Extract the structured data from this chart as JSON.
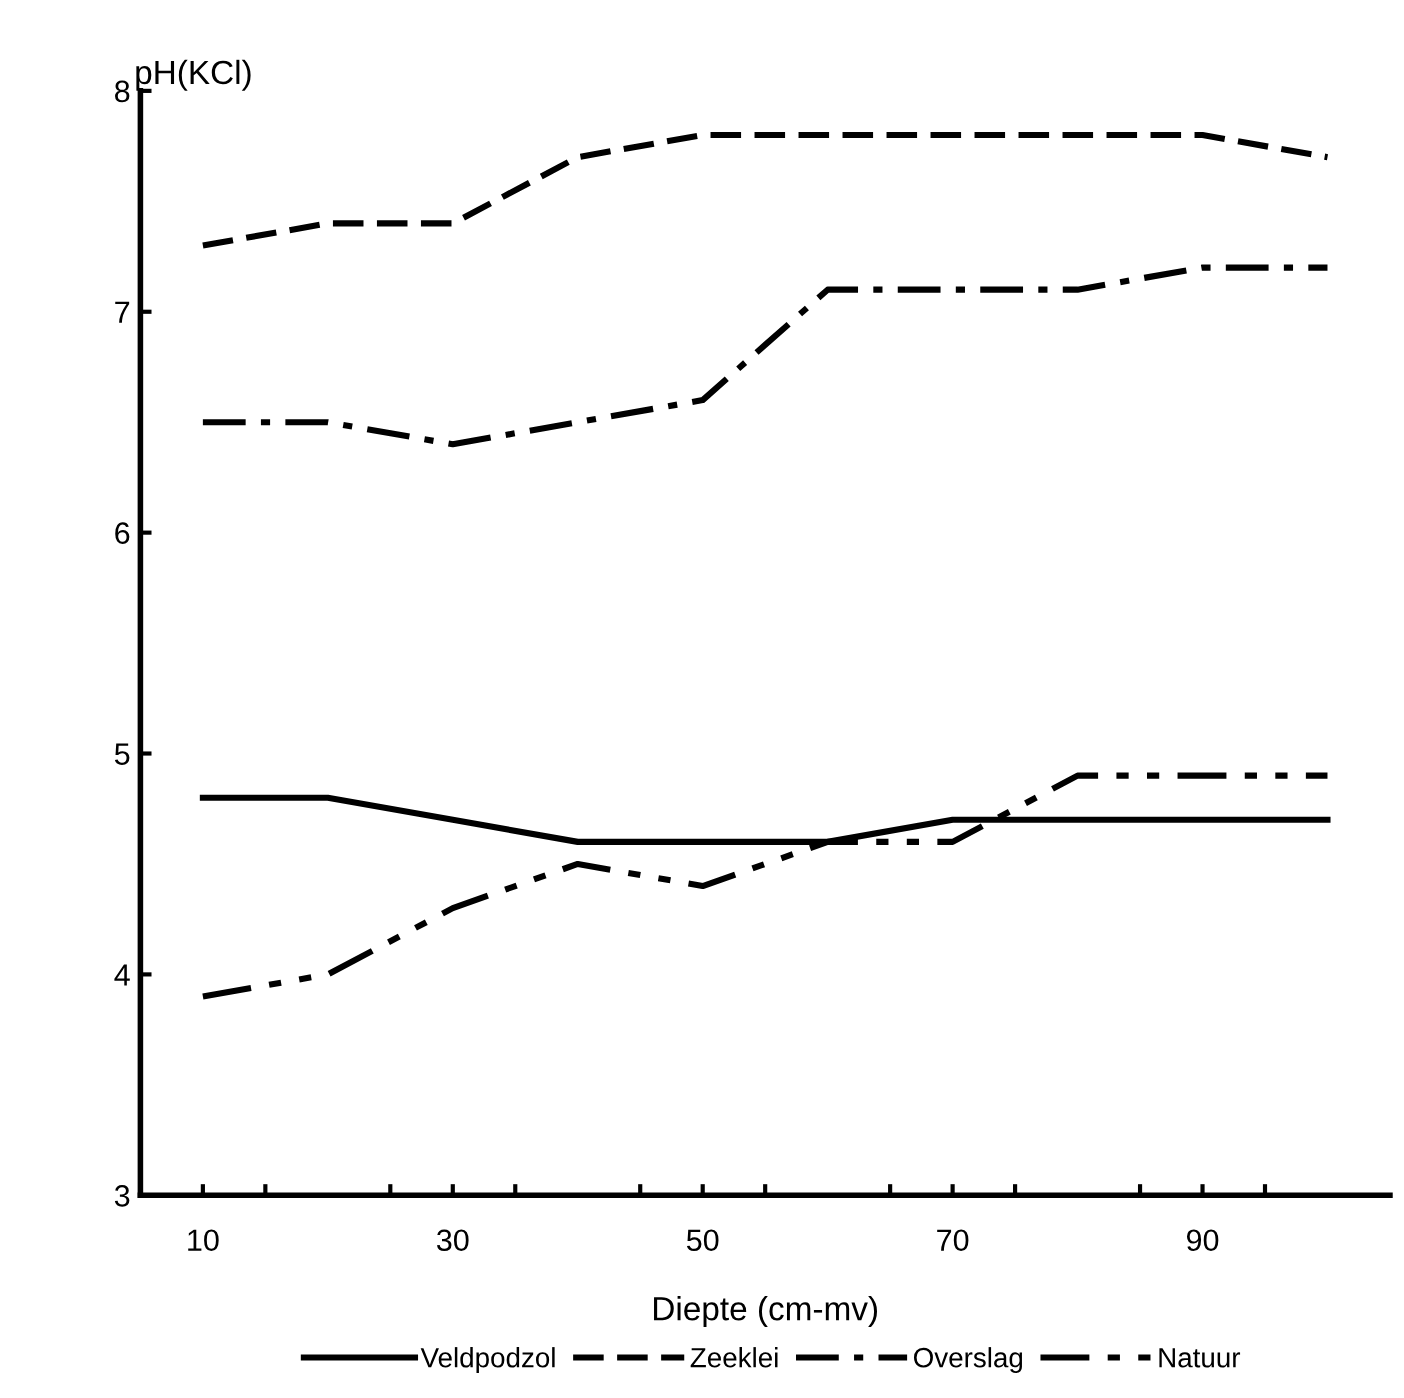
{
  "chart_data": {
    "type": "line",
    "xlabel": "Diepte (cm-mv)",
    "ylabel": "pH(KCl)",
    "x": [
      10,
      20,
      30,
      40,
      50,
      60,
      70,
      80,
      90,
      100
    ],
    "series": [
      {
        "name": "Veldpodzol",
        "color": "#000000",
        "line_style": "solid",
        "values": [
          4.8,
          4.8,
          4.7,
          4.6,
          4.6,
          4.6,
          4.7,
          4.7,
          4.7,
          4.7
        ]
      },
      {
        "name": "Zeeklei",
        "color": "#000000",
        "line_style": "dashed",
        "values": [
          7.3,
          7.4,
          7.4,
          7.7,
          7.8,
          7.8,
          7.8,
          7.8,
          7.8,
          7.7
        ]
      },
      {
        "name": "Overslag",
        "color": "#000000",
        "line_style": "dashdot",
        "values": [
          6.5,
          6.5,
          6.4,
          6.5,
          6.6,
          7.1,
          7.1,
          7.1,
          7.2,
          7.2
        ]
      },
      {
        "name": "Natuur",
        "color": "#000000",
        "line_style": "dashdotdot",
        "values": [
          3.9,
          4.0,
          4.3,
          4.5,
          4.4,
          4.6,
          4.6,
          4.9,
          4.9,
          4.9
        ]
      }
    ],
    "xlim": [
      5,
      105
    ],
    "ylim": [
      3,
      8
    ],
    "xticks": [
      10,
      {
        "value": 15,
        "label": null
      },
      {
        "value": 25,
        "label": null
      },
      30,
      {
        "value": 35,
        "label": null
      },
      {
        "value": 45,
        "label": null
      },
      50,
      {
        "value": 55,
        "label": null
      },
      {
        "value": 65,
        "label": null
      },
      70,
      {
        "value": 75,
        "label": null
      },
      {
        "value": 85,
        "label": null
      },
      90,
      {
        "value": 95,
        "label": null
      }
    ],
    "yticks": [
      3,
      4,
      5,
      6,
      7,
      8
    ],
    "grid": false,
    "legend": "bottom",
    "marker": "none"
  }
}
